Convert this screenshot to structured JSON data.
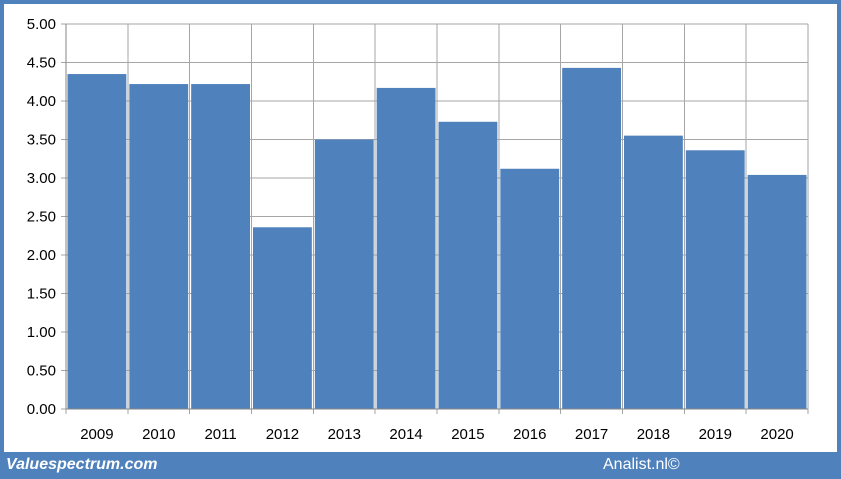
{
  "footer": {
    "brand_left": "Valuespectrum.com",
    "brand_right": "Analist.nl©"
  },
  "colors": {
    "frame": "#4f81bd",
    "bar": "#4f81bd",
    "grid": "#a6a6a6",
    "plot_background": "#ffffff"
  },
  "chart_data": {
    "type": "bar",
    "categories": [
      "2009",
      "2010",
      "2011",
      "2012",
      "2013",
      "2014",
      "2015",
      "2016",
      "2017",
      "2018",
      "2019",
      "2020"
    ],
    "values": [
      4.35,
      4.22,
      4.22,
      2.36,
      3.5,
      4.17,
      3.73,
      3.12,
      4.43,
      3.55,
      3.36,
      3.04
    ],
    "ylim": [
      0,
      5
    ],
    "yticks": [
      "0.00",
      "0.50",
      "1.00",
      "1.50",
      "2.00",
      "2.50",
      "3.00",
      "3.50",
      "4.00",
      "4.50",
      "5.00"
    ],
    "grid": true,
    "legend": false
  }
}
